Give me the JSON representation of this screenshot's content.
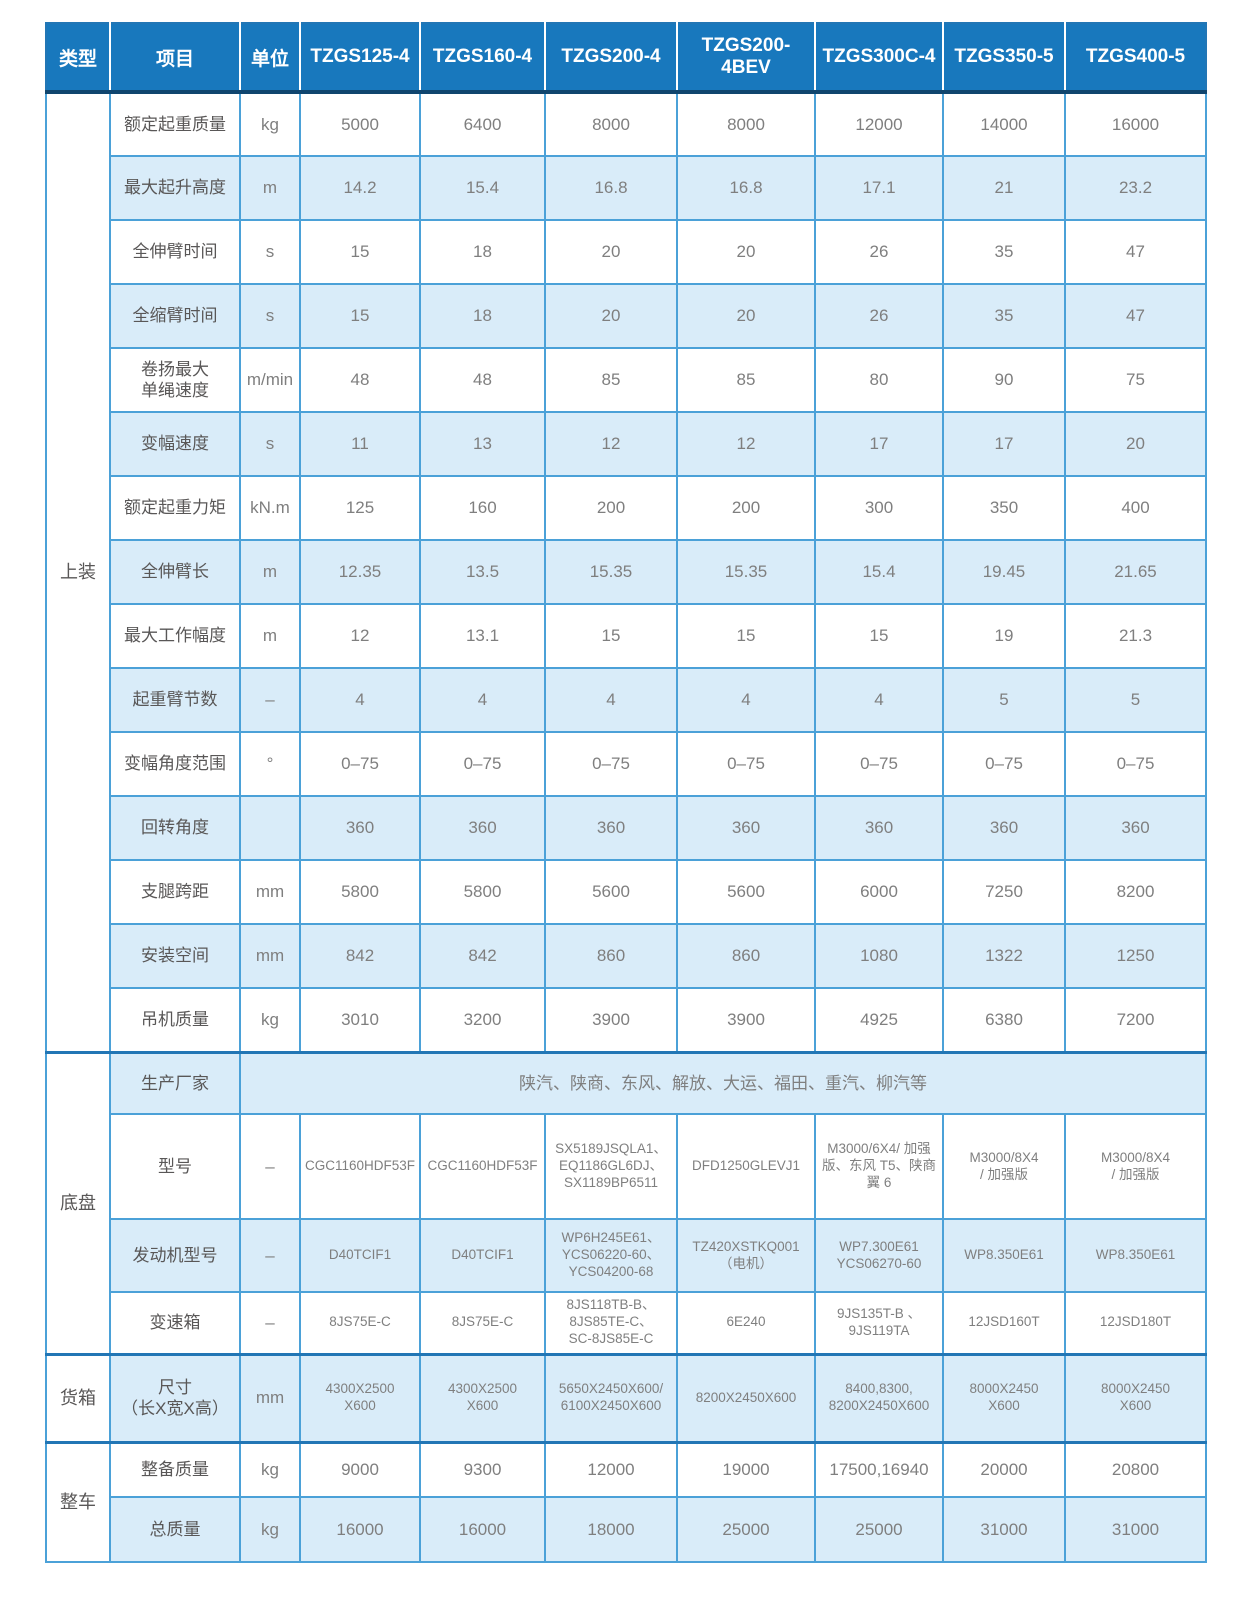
{
  "colors": {
    "header_bg": "#1878bd",
    "row_alt_bg": "#d9ecf9",
    "grid_line": "#4ba1d8",
    "section_divider": "#2276b5",
    "header_underline": "#10456e",
    "label_text": "#595757",
    "value_text": "#7f7f7f"
  },
  "header": {
    "type": "类型",
    "item": "项目",
    "unit": "单位",
    "models": [
      "TZGS125-4",
      "TZGS160-4",
      "TZGS200-4",
      "TZGS200-\n4BEV",
      "TZGS300C-4",
      "TZGS350-5",
      "TZGS400-5"
    ]
  },
  "sections": [
    {
      "name": "上装",
      "rows": [
        {
          "item": "额定起重质量",
          "unit": "kg",
          "values": [
            "5000",
            "6400",
            "8000",
            "8000",
            "12000",
            "14000",
            "16000"
          ]
        },
        {
          "item": "最大起升高度",
          "unit": "m",
          "values": [
            "14.2",
            "15.4",
            "16.8",
            "16.8",
            "17.1",
            "21",
            "23.2"
          ]
        },
        {
          "item": "全伸臂时间",
          "unit": "s",
          "values": [
            "15",
            "18",
            "20",
            "20",
            "26",
            "35",
            "47"
          ]
        },
        {
          "item": "全缩臂时间",
          "unit": "s",
          "values": [
            "15",
            "18",
            "20",
            "20",
            "26",
            "35",
            "47"
          ]
        },
        {
          "item": "卷扬最大\n单绳速度",
          "unit": "m/min",
          "values": [
            "48",
            "48",
            "85",
            "85",
            "80",
            "90",
            "75"
          ]
        },
        {
          "item": "变幅速度",
          "unit": "s",
          "values": [
            "11",
            "13",
            "12",
            "12",
            "17",
            "17",
            "20"
          ]
        },
        {
          "item": "额定起重力矩",
          "unit": "kN.m",
          "values": [
            "125",
            "160",
            "200",
            "200",
            "300",
            "350",
            "400"
          ]
        },
        {
          "item": "全伸臂长",
          "unit": "m",
          "values": [
            "12.35",
            "13.5",
            "15.35",
            "15.35",
            "15.4",
            "19.45",
            "21.65"
          ]
        },
        {
          "item": "最大工作幅度",
          "unit": "m",
          "values": [
            "12",
            "13.1",
            "15",
            "15",
            "15",
            "19",
            "21.3"
          ]
        },
        {
          "item": "起重臂节数",
          "unit": "–",
          "values": [
            "4",
            "4",
            "4",
            "4",
            "4",
            "5",
            "5"
          ]
        },
        {
          "item": "变幅角度范围",
          "unit": "°",
          "values": [
            "0–75",
            "0–75",
            "0–75",
            "0–75",
            "0–75",
            "0–75",
            "0–75"
          ]
        },
        {
          "item": "回转角度",
          "unit": "",
          "values": [
            "360",
            "360",
            "360",
            "360",
            "360",
            "360",
            "360"
          ]
        },
        {
          "item": "支腿跨距",
          "unit": "mm",
          "values": [
            "5800",
            "5800",
            "5600",
            "5600",
            "6000",
            "7250",
            "8200"
          ]
        },
        {
          "item": "安装空间",
          "unit": "mm",
          "values": [
            "842",
            "842",
            "860",
            "860",
            "1080",
            "1322",
            "1250"
          ]
        },
        {
          "item": "吊机质量",
          "unit": "kg",
          "values": [
            "3010",
            "3200",
            "3900",
            "3900",
            "4925",
            "6380",
            "7200"
          ]
        }
      ]
    },
    {
      "name": "底盘",
      "rows": [
        {
          "item": "生产厂家",
          "merged": "陕汽、陕商、东风、解放、大运、福田、重汽、柳汽等"
        },
        {
          "item": "型号",
          "unit": "–",
          "values": [
            "CGC1160HDF53F",
            "CGC1160HDF53F",
            "SX5189JSQLA1、\nEQ1186GL6DJ、\nSX1189BP6511",
            "DFD1250GLEVJ1",
            "M3000/6X4/ 加强\n版、东风 T5、陕商\n翼 6",
            "M3000/8X4\n/ 加强版",
            "M3000/8X4\n/ 加强版"
          ]
        },
        {
          "item": "发动机型号",
          "unit": "–",
          "values": [
            "D40TCIF1",
            "D40TCIF1",
            "WP6H245E61、\nYCS06220-60、\nYCS04200-68",
            "TZ420XSTKQ001\n（电机）",
            "WP7.300E61\nYCS06270-60",
            "WP8.350E61",
            "WP8.350E61"
          ]
        },
        {
          "item": "变速箱",
          "unit": "–",
          "values": [
            "8JS75E-C",
            "8JS75E-C",
            "8JS118TB-B、\n8JS85TE-C、\nSC-8JS85E-C",
            "6E240",
            "9JS135T-B 、\n9JS119TA",
            "12JSD160T",
            "12JSD180T"
          ]
        }
      ]
    },
    {
      "name": "货箱",
      "rows": [
        {
          "item": "尺寸\n（长X宽X高）",
          "unit": "mm",
          "values": [
            "4300X2500\nX600",
            "4300X2500\nX600",
            "5650X2450X600/\n6100X2450X600",
            "8200X2450X600",
            "8400,8300,\n8200X2450X600",
            "8000X2450\nX600",
            "8000X2450\nX600"
          ]
        }
      ]
    },
    {
      "name": "整车",
      "rows": [
        {
          "item": "整备质量",
          "unit": "kg",
          "values": [
            "9000",
            "9300",
            "12000",
            "19000",
            "17500,16940",
            "20000",
            "20800"
          ]
        },
        {
          "item": "总质量",
          "unit": "kg",
          "values": [
            "16000",
            "16000",
            "18000",
            "25000",
            "25000",
            "31000",
            "31000"
          ]
        }
      ]
    }
  ]
}
